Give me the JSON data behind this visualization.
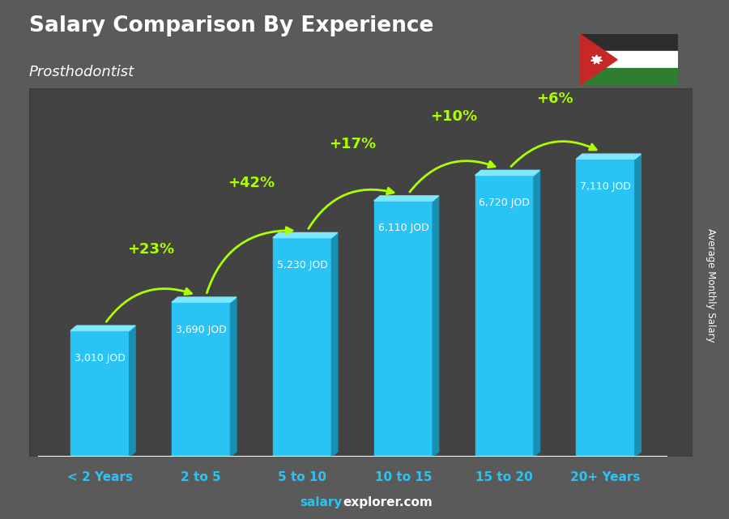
{
  "title": "Salary Comparison By Experience",
  "subtitle": "Prosthodontist",
  "categories": [
    "< 2 Years",
    "2 to 5",
    "5 to 10",
    "10 to 15",
    "15 to 20",
    "20+ Years"
  ],
  "values": [
    3010,
    3690,
    5230,
    6110,
    6720,
    7110
  ],
  "value_labels": [
    "3,010 JOD",
    "3,690 JOD",
    "5,230 JOD",
    "6,110 JOD",
    "6,720 JOD",
    "7,110 JOD"
  ],
  "pct_changes": [
    "+23%",
    "+42%",
    "+17%",
    "+10%",
    "+6%"
  ],
  "face_color": "#29c4f5",
  "top_color": "#7de8ff",
  "side_color": "#1890b5",
  "bg_color": "#5a5a5a",
  "title_color": "#ffffff",
  "subtitle_color": "#ffffff",
  "label_color": "#ffffff",
  "pct_color": "#aaff00",
  "xcat_color": "#29c4f5",
  "watermark_salary_color": "#29c4f5",
  "watermark_rest_color": "#ffffff",
  "ylabel_text": "Average Monthly Salary",
  "ylim_max": 8800,
  "bar_width": 0.58
}
